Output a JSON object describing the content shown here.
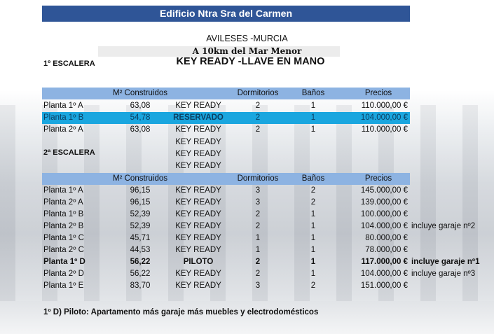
{
  "title": "Edificio Ntra Sra del Carmen",
  "location": "AVILESES -MURCIA",
  "distance": "A 10km del Mar Menor",
  "key_ready_heading": "KEY READY -LLAVE EN MANO",
  "colors": {
    "title_bar": "#2f5597",
    "header": "#8db3e2",
    "highlight": "#1aa6df"
  },
  "headers": [
    "M² Construidos",
    "Dormitorios",
    "Baños",
    "Precios"
  ],
  "escalera1": {
    "label": "1º ESCALERA",
    "rows": [
      [
        "Planta 1º A",
        "63,08",
        "KEY READY",
        "2",
        "1",
        "110.000,00 €",
        ""
      ],
      [
        "Planta 1º B",
        "54,78",
        "RESERVADO",
        "2",
        "1",
        "104.000,00 €",
        ""
      ],
      [
        "Planta 2º A",
        "63,08",
        "KEY READY",
        "2",
        "1",
        "110.000,00 €",
        ""
      ]
    ],
    "extra": [
      "KEY READY",
      "KEY READY",
      "KEY READY"
    ]
  },
  "escalera2": {
    "label": "2ª ESCALERA",
    "rows": [
      [
        "Planta 1º A",
        "96,15",
        "KEY READY",
        "3",
        "2",
        "145.000,00 €",
        ""
      ],
      [
        "Planta 2º A",
        "96,15",
        "KEY READY",
        "3",
        "2",
        "139.000,00 €",
        ""
      ],
      [
        "Planta 1º B",
        "52,39",
        "KEY READY",
        "2",
        "1",
        "100.000,00 €",
        ""
      ],
      [
        "Planta 2º B",
        "52,39",
        "KEY READY",
        "2",
        "1",
        "104.000,00 €",
        "incluye  garaje nº2"
      ],
      [
        "Planta 1º C",
        "45,71",
        "KEY READY",
        "1",
        "1",
        "80.000,00 €",
        ""
      ],
      [
        "Planta 2º C",
        "44,53",
        "KEY READY",
        "1",
        "1",
        "78.000,00 €",
        ""
      ],
      [
        "Planta 1º D",
        "56,22",
        "PILOTO",
        "2",
        "1",
        "117.000,00 €",
        "incluye  garaje nº1"
      ],
      [
        "Planta 2º D",
        "56,22",
        "KEY READY",
        "2",
        "1",
        "104.000,00 €",
        "incluye  garaje nº3"
      ],
      [
        "Planta 1º E",
        "83,70",
        "KEY READY",
        "3",
        "2",
        "151.000,00 €",
        ""
      ]
    ]
  },
  "footnote": "1º D)  Piloto: Apartamento más garaje más muebles y electrodomésticos"
}
